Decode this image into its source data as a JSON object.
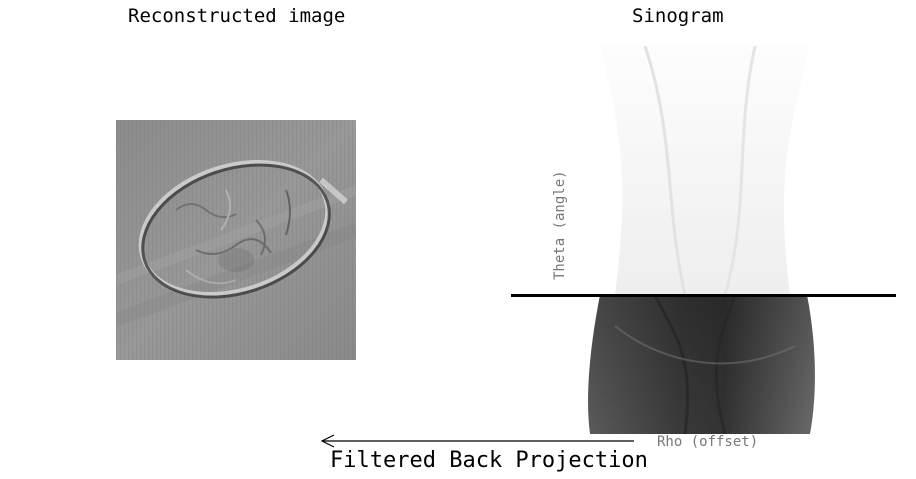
{
  "reconstruction": {
    "title": "Reconstructed image"
  },
  "sinogram": {
    "title": "Sinogram",
    "y_axis_label": "Theta (angle)",
    "x_axis_label": "Rho (offset)"
  },
  "caption": "Filtered Back Projection",
  "colors": {
    "line": "#000000",
    "axis_label": "#777777",
    "background": "#ffffff"
  }
}
